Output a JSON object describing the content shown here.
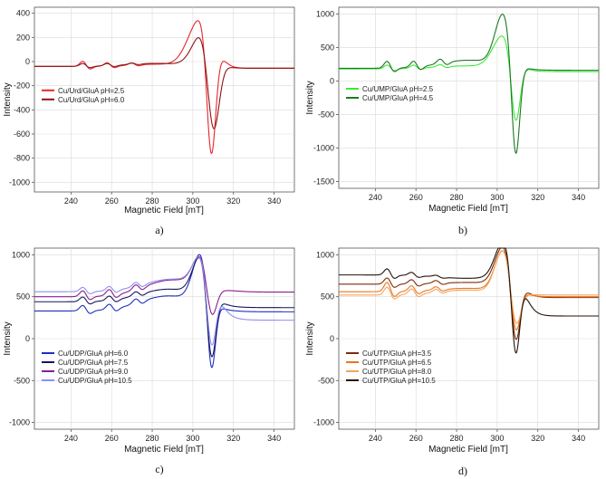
{
  "chart_data": [
    {
      "type": "line",
      "panel_label": "a)",
      "xlabel": "Magnetic Field [mT]",
      "ylabel": "Intensity",
      "xlim": [
        222,
        350
      ],
      "ylim": [
        -1080,
        450
      ],
      "xticks": [
        240,
        260,
        280,
        300,
        320,
        340
      ],
      "yticks": [
        -1000,
        -800,
        -600,
        -400,
        -200,
        0,
        200,
        400
      ],
      "legend": "center-left",
      "series": [
        {
          "name": "Cu/Urd/GluA pH=2.5",
          "color": "#e8262b",
          "base": -40,
          "hf": [
            [
              246,
              45
            ],
            [
              258,
              30
            ],
            [
              270,
              18
            ]
          ],
          "bump": [
            282,
            18,
            12
          ],
          "pos": [
            304,
            400,
            6
          ],
          "neg": [
            309,
            -1000,
            2.2
          ],
          "tail": -55
        },
        {
          "name": "Cu/Urd/GluA pH=6.0",
          "color": "#8b1414",
          "base": -40,
          "hf": [
            [
              246,
              25
            ],
            [
              258,
              20
            ],
            [
              270,
              12
            ]
          ],
          "bump": [
            282,
            25,
            14
          ],
          "pos": [
            305,
            280,
            5
          ],
          "neg": [
            310,
            -680,
            2.8
          ],
          "tail": -55
        }
      ]
    },
    {
      "type": "line",
      "panel_label": "b)",
      "xlabel": "Magnetic Field [mT]",
      "ylabel": "Intensity",
      "xlim": [
        222,
        350
      ],
      "ylim": [
        -1600,
        1100
      ],
      "xticks": [
        240,
        260,
        280,
        300,
        320,
        340
      ],
      "yticks": [
        -1500,
        -1000,
        -500,
        0,
        500,
        1000
      ],
      "legend": "center-left",
      "series": [
        {
          "name": "Cu/UMP/GluA pH=2.5",
          "color": "#3de83a",
          "base": 180,
          "hf": [
            [
              246,
              60
            ],
            [
              259,
              50
            ],
            [
              272,
              35
            ]
          ],
          "bump": [
            285,
            45,
            16
          ],
          "pos": [
            303,
            480,
            5
          ],
          "neg": [
            309,
            -1000,
            2.2
          ],
          "tail": 140
        },
        {
          "name": "Cu/UMP/GluA pH=4.5",
          "color": "#1a7a1f",
          "base": 190,
          "hf": [
            [
              246,
              110
            ],
            [
              259,
              95
            ],
            [
              272,
              70
            ]
          ],
          "bump": [
            286,
            120,
            14
          ],
          "pos": [
            303,
            760,
            4
          ],
          "neg": [
            309,
            -1530,
            2.0
          ],
          "tail": 160
        }
      ]
    },
    {
      "type": "line",
      "panel_label": "c)",
      "xlabel": "Magnetic Field [mT]",
      "ylabel": "Intensity",
      "xlim": [
        222,
        350
      ],
      "ylim": [
        -1080,
        1080
      ],
      "xticks": [
        240,
        260,
        280,
        300,
        320,
        340
      ],
      "yticks": [
        -1000,
        -500,
        0,
        500,
        1000
      ],
      "legend": "center-left",
      "series": [
        {
          "name": "Cu/UDP/GluA pH=6.0",
          "color": "#1f2fbf",
          "base": 330,
          "hf": [
            [
              246,
              70
            ],
            [
              259,
              65
            ],
            [
              272,
              55
            ]
          ],
          "bump": [
            288,
            180,
            14
          ],
          "pos": [
            304,
            600,
            4
          ],
          "neg": [
            309,
            -990,
            2.0
          ],
          "tail": 320
        },
        {
          "name": "Cu/UDP/GluA pH=7.5",
          "color": "#14165e",
          "base": 440,
          "hf": [
            [
              246,
              60
            ],
            [
              259,
              55
            ],
            [
              272,
              45
            ]
          ],
          "bump": [
            288,
            150,
            14
          ],
          "pos": [
            304,
            480,
            4
          ],
          "neg": [
            309,
            -900,
            2.2
          ],
          "tail": 370
        },
        {
          "name": "Cu/UDP/GluA pH=9.0",
          "color": "#8a1f8a",
          "base": 500,
          "hf": [
            [
              246,
              75
            ],
            [
              259,
              75
            ],
            [
              272,
              60
            ]
          ],
          "bump": [
            290,
            200,
            14
          ],
          "pos": [
            304,
            380,
            4
          ],
          "neg": [
            309,
            -450,
            2.4
          ],
          "tail": 555
        },
        {
          "name": "Cu/UDP/GluA pH=10.5",
          "color": "#8f8ff2",
          "base": 560,
          "hf": [
            [
              246,
              55
            ],
            [
              259,
              55
            ],
            [
              272,
              50
            ]
          ],
          "bump": [
            290,
            150,
            14
          ],
          "pos": [
            304,
            350,
            4
          ],
          "neg": [
            309,
            -800,
            2.2
          ],
          "tail": 220
        }
      ]
    },
    {
      "type": "line",
      "panel_label": "d)",
      "xlabel": "Magnetic Field [mT]",
      "ylabel": "Intensity",
      "xlim": [
        222,
        350
      ],
      "ylim": [
        -1080,
        1080
      ],
      "xticks": [
        240,
        260,
        280,
        300,
        320,
        340
      ],
      "yticks": [
        -1000,
        -500,
        0,
        500,
        1000
      ],
      "legend": "center-left",
      "series": [
        {
          "name": "Cu/UTP/GluA pH=3.5",
          "color": "#7a2c0a",
          "base": 650,
          "hf": [
            [
              246,
              80
            ],
            [
              258,
              55
            ],
            [
              270,
              35
            ]
          ],
          "bump": [
            285,
            20,
            14
          ],
          "pos": [
            303,
            450,
            4
          ],
          "neg": [
            309,
            -780,
            2.2
          ],
          "tail": 490
        },
        {
          "name": "Cu/UTP/GluA pH=6.5",
          "color": "#e8761f",
          "base": 560,
          "hf": [
            [
              246,
              120
            ],
            [
              258,
              70
            ],
            [
              270,
              40
            ]
          ],
          "bump": [
            285,
            40,
            14
          ],
          "pos": [
            303,
            480,
            4
          ],
          "neg": [
            309,
            -600,
            2.2
          ],
          "tail": 500
        },
        {
          "name": "Cu/UTP/GluA pH=8.0",
          "color": "#f6a45c",
          "base": 520,
          "hf": [
            [
              246,
              100
            ],
            [
              258,
              70
            ],
            [
              270,
              40
            ]
          ],
          "bump": [
            285,
            60,
            14
          ],
          "pos": [
            303,
            520,
            4
          ],
          "neg": [
            309,
            -500,
            2.4
          ],
          "tail": 520
        },
        {
          "name": "Cu/UTP/GluA pH=10.5",
          "color": "#241208",
          "base": 760,
          "hf": [
            [
              246,
              80
            ],
            [
              258,
              40
            ],
            [
              270,
              20
            ]
          ],
          "bump": [
            285,
            -40,
            14
          ],
          "pos": [
            303,
            420,
            4
          ],
          "neg": [
            309,
            -990,
            2.0
          ],
          "tail": 270
        }
      ]
    }
  ]
}
